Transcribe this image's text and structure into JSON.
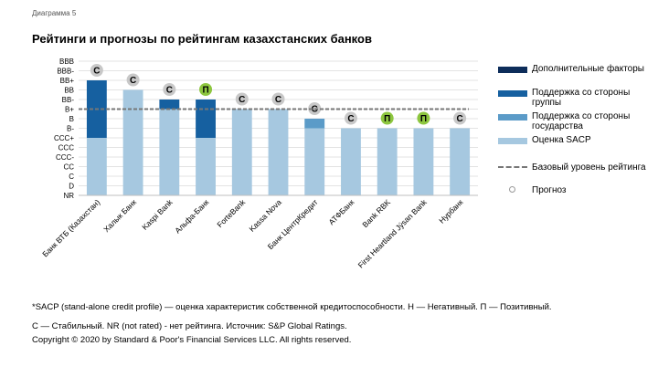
{
  "header": {
    "diagram_label": "Диаграмма 5",
    "title": "Рейтинги и прогнозы по рейтингам казахстанских банков"
  },
  "chart_data": {
    "type": "bar",
    "stacked": true,
    "y_categories": [
      "NR",
      "D",
      "C",
      "CC",
      "CCC-",
      "CCC",
      "CCC+",
      "B-",
      "B",
      "B+",
      "BB-",
      "BB",
      "BB+",
      "BBB-",
      "BBB"
    ],
    "categories": [
      "Банк ВТБ (Казахстан)",
      "Халык Банк",
      "Kaspi Bank",
      "Альфа-Банк",
      "ForteBank",
      "Kassa Nova",
      "Банк ЦентрКредит",
      "АТФБанк",
      "Bank RBK",
      "First Heartland Jýsan Bank",
      "Нурбанк"
    ],
    "series": [
      {
        "name": "Оценка SACP",
        "color": "#a6c8e0",
        "values": [
          "CCC+",
          "BB",
          "B+",
          "CCC+",
          "B+",
          "B+",
          "B-",
          "B-",
          "B-",
          "B-",
          "B-"
        ]
      },
      {
        "name": "Поддержка со стороны государства",
        "color": "#5b9bc8",
        "values": [
          null,
          null,
          "B",
          null,
          "B",
          null,
          "B",
          null,
          null,
          null,
          null
        ]
      },
      {
        "name": "Поддержка со стороны группы",
        "color": "#1660a0",
        "values": [
          "BB+",
          null,
          "BB-",
          "BB-",
          null,
          null,
          null,
          null,
          null,
          null,
          null
        ]
      },
      {
        "name": "Дополнительные факторы",
        "color": "#0d2d5a",
        "values": [
          null,
          null,
          "BB-",
          null,
          null,
          null,
          null,
          null,
          null,
          null,
          null
        ]
      }
    ],
    "baseline": {
      "name": "Базовый уровень рейтинга",
      "value": "B+"
    },
    "outlooks": [
      "С",
      "С",
      "С",
      "П",
      "С",
      "С",
      "С",
      "С",
      "П",
      "П",
      "С"
    ],
    "outlook_colors": {
      "С": "#c8c8c8",
      "П": "#8dc63f"
    },
    "grid": true
  },
  "legend": {
    "items": [
      {
        "label": "Дополнительные факторы",
        "color": "#0d2d5a"
      },
      {
        "label": "Поддержка со стороны группы",
        "color": "#1660a0"
      },
      {
        "label": "Поддержка со стороны государства",
        "color": "#5b9bc8"
      },
      {
        "label": "Оценка SACP",
        "color": "#a6c8e0"
      }
    ],
    "baseline_label": "Базовый уровень рейтинга",
    "outlook_label": "Прогноз"
  },
  "footer": {
    "note1": "*SACP (stand-alone credit profile) — оценка характеристик собственной кредитоспособности. Н — Негативный. П — Позитивный.",
    "note2": "С — Стабильный. NR (not rated) - нет рейтинга. Источник: S&P Global Ratings.",
    "note3": "Copyright © 2020 by Standard & Poor's Financial Services LLC. All rights reserved."
  }
}
